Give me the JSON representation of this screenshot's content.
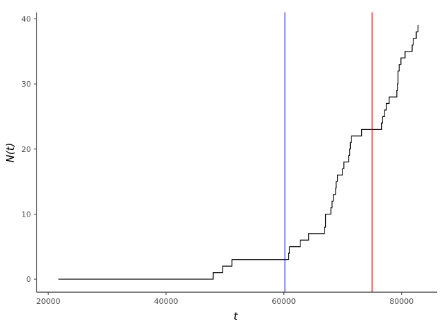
{
  "chart_data": {
    "type": "line",
    "step": true,
    "xlabel": "t",
    "ylabel": "N(t)",
    "xlim": [
      18000,
      86000
    ],
    "ylim": [
      -2,
      41
    ],
    "x_ticks": [
      20000,
      40000,
      60000,
      80000
    ],
    "x_tick_labels": [
      "20000",
      "40000",
      "60000",
      "80000"
    ],
    "y_ticks": [
      0,
      10,
      20,
      30,
      40
    ],
    "y_tick_labels": [
      "0",
      "10",
      "20",
      "30",
      "40"
    ],
    "grid": false,
    "series": [
      {
        "color": "#000000",
        "points": [
          [
            21700,
            0
          ],
          [
            48000,
            1
          ],
          [
            49600,
            2
          ],
          [
            51200,
            3
          ],
          [
            60800,
            4
          ],
          [
            61000,
            5
          ],
          [
            62800,
            6
          ],
          [
            64200,
            7
          ],
          [
            66900,
            8
          ],
          [
            67100,
            10
          ],
          [
            68000,
            11
          ],
          [
            68200,
            12
          ],
          [
            68400,
            13
          ],
          [
            68800,
            14
          ],
          [
            68900,
            15
          ],
          [
            69100,
            16
          ],
          [
            70000,
            17
          ],
          [
            70200,
            18
          ],
          [
            71000,
            19
          ],
          [
            71200,
            20
          ],
          [
            71300,
            21
          ],
          [
            71500,
            22
          ],
          [
            73200,
            23
          ],
          [
            76600,
            24
          ],
          [
            76800,
            25
          ],
          [
            77100,
            26
          ],
          [
            77400,
            27
          ],
          [
            77900,
            28
          ],
          [
            79200,
            29
          ],
          [
            79300,
            30
          ],
          [
            79400,
            32
          ],
          [
            79600,
            33
          ],
          [
            79900,
            34
          ],
          [
            80600,
            35
          ],
          [
            81800,
            36
          ],
          [
            82000,
            37
          ],
          [
            82500,
            38
          ],
          [
            82800,
            39
          ]
        ],
        "x_end": 82900
      }
    ],
    "vlines": [
      {
        "x": 60200,
        "color": "#0000ff"
      },
      {
        "x": 75000,
        "color": "#ff0000"
      }
    ]
  }
}
